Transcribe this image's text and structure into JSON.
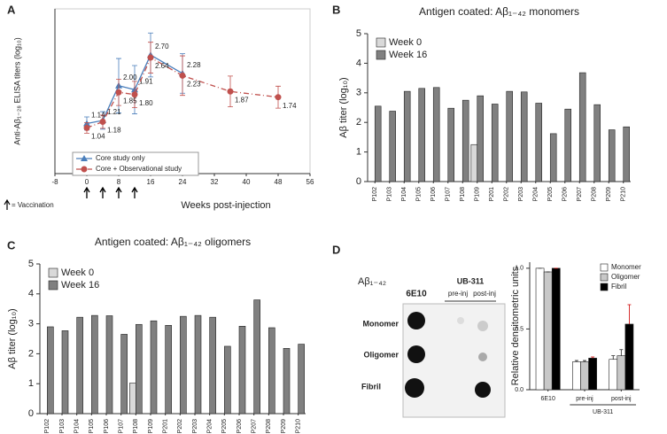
{
  "chart_data": [
    {
      "panel": "A",
      "type": "line",
      "xlabel": "Weeks post-injection",
      "ylabel": "Anti-Aβ₁₋₂₈ ELISA titers (log₁₀)",
      "xlim": [
        -8,
        56
      ],
      "xticks": [
        -8,
        0,
        8,
        16,
        24,
        32,
        40,
        48,
        56
      ],
      "ylim": [
        0,
        3.75
      ],
      "legend": "lower left",
      "vaccination_weeks": [
        0,
        4,
        8,
        12
      ],
      "vaccination_note": "= Vaccination",
      "series": [
        {
          "name": "Core study only",
          "color": "#4a7ebb",
          "marker": "triangle",
          "dash": "solid",
          "x": [
            0,
            4,
            8,
            12,
            16,
            24
          ],
          "values": [
            1.14,
            1.21,
            2.0,
            1.91,
            2.7,
            2.28
          ],
          "value_labels": [
            "1.14",
            "1.21",
            "2.00",
            "1.91",
            "2.70",
            "2.28"
          ],
          "errors": [
            0.15,
            0.2,
            0.62,
            0.55,
            0.5,
            0.45
          ]
        },
        {
          "name": "Core + Observational study",
          "color": "#c0504d",
          "marker": "circle",
          "dash": "dashdot",
          "x": [
            0,
            4,
            8,
            12,
            16,
            24,
            36,
            48
          ],
          "values": [
            1.04,
            1.18,
            1.85,
            1.8,
            2.64,
            2.23,
            1.87,
            1.74
          ],
          "value_labels": [
            "1.04",
            "1.18",
            "1.85",
            "1.80",
            "2.64",
            "2.23",
            "1.87",
            "1.74"
          ],
          "errors": [
            0.12,
            0.15,
            0.3,
            0.3,
            0.35,
            0.45,
            0.35,
            0.25
          ]
        }
      ]
    },
    {
      "panel": "B",
      "type": "bar",
      "title": "Antigen coated: Aβ₁₋₄₂ monomers",
      "ylabel": "Aβ titer (log₁₀)",
      "categories": [
        "P102",
        "P103",
        "P104",
        "P105",
        "P106",
        "P107",
        "P108",
        "P109",
        "P201",
        "P202",
        "P203",
        "P204",
        "P205",
        "P206",
        "P207",
        "P208",
        "P209",
        "P210"
      ],
      "ylim": [
        0,
        5
      ],
      "yticks": [
        0,
        1,
        2,
        3,
        4,
        5
      ],
      "legend": "upper left",
      "series": [
        {
          "name": "Week 0",
          "color": "#d9d9d9",
          "values": [
            null,
            null,
            null,
            null,
            null,
            null,
            null,
            1.25,
            null,
            null,
            null,
            null,
            null,
            null,
            null,
            null,
            null,
            null
          ]
        },
        {
          "name": "Week 16",
          "color": "#808080",
          "values": [
            2.55,
            2.38,
            3.05,
            3.15,
            3.18,
            2.48,
            2.75,
            2.9,
            2.62,
            3.05,
            3.03,
            2.65,
            1.62,
            2.45,
            3.68,
            2.6,
            1.75,
            1.85
          ]
        }
      ]
    },
    {
      "panel": "C",
      "type": "bar",
      "title": "Antigen coated: Aβ₁₋₄₂ oligomers",
      "ylabel": "Aβ titer (log₁₀)",
      "categories": [
        "P102",
        "P103",
        "P104",
        "P105",
        "P106",
        "P107",
        "P108",
        "P109",
        "P201",
        "P202",
        "P203",
        "P204",
        "P205",
        "P206",
        "P207",
        "P208",
        "P209",
        "P210"
      ],
      "ylim": [
        0,
        5
      ],
      "yticks": [
        0,
        1,
        2,
        3,
        4,
        5
      ],
      "legend": "upper left",
      "series": [
        {
          "name": "Week 0",
          "color": "#d9d9d9",
          "values": [
            null,
            null,
            null,
            null,
            null,
            null,
            1.02,
            null,
            null,
            null,
            null,
            null,
            null,
            null,
            null,
            null,
            null,
            null
          ]
        },
        {
          "name": "Week 16",
          "color": "#808080",
          "values": [
            2.9,
            2.77,
            3.22,
            3.28,
            3.27,
            2.65,
            2.98,
            3.1,
            2.95,
            3.25,
            3.28,
            3.22,
            2.25,
            2.92,
            3.8,
            2.87,
            2.18,
            2.32
          ]
        }
      ]
    },
    {
      "panel": "D",
      "type": "bar",
      "ylabel": "Relative densitometric units",
      "group_label": "UB-311",
      "categories": [
        "6E10",
        "pre-inj",
        "post-inj"
      ],
      "ylim": [
        0,
        1.05
      ],
      "yticks": [
        {
          "value": 0,
          "label": "0.0"
        },
        {
          "value": 0.5,
          "label": "0.5"
        },
        {
          "value": 1,
          "label": "1.0"
        }
      ],
      "legend": "upper right",
      "series": [
        {
          "name": "Monomer",
          "color": "#ffffff",
          "values": [
            1.0,
            0.23,
            0.25
          ],
          "errors": [
            0,
            0.01,
            0.03
          ]
        },
        {
          "name": "Oligomer",
          "color": "#c8c8c8",
          "values": [
            0.97,
            0.23,
            0.28
          ],
          "errors": [
            0,
            0.01,
            0.05
          ]
        },
        {
          "name": "Fibril",
          "color": "#000000",
          "values": [
            1.0,
            0.26,
            0.54
          ],
          "errors": [
            0,
            0.01,
            0.16
          ]
        }
      ]
    }
  ],
  "blot": {
    "antigen": "Aβ₁₋₄₂",
    "group": "UB-311",
    "columns": [
      "6E10",
      "pre-inj",
      "post-inj"
    ],
    "rows": [
      "Monomer",
      "Oligomer",
      "Fibril"
    ]
  }
}
